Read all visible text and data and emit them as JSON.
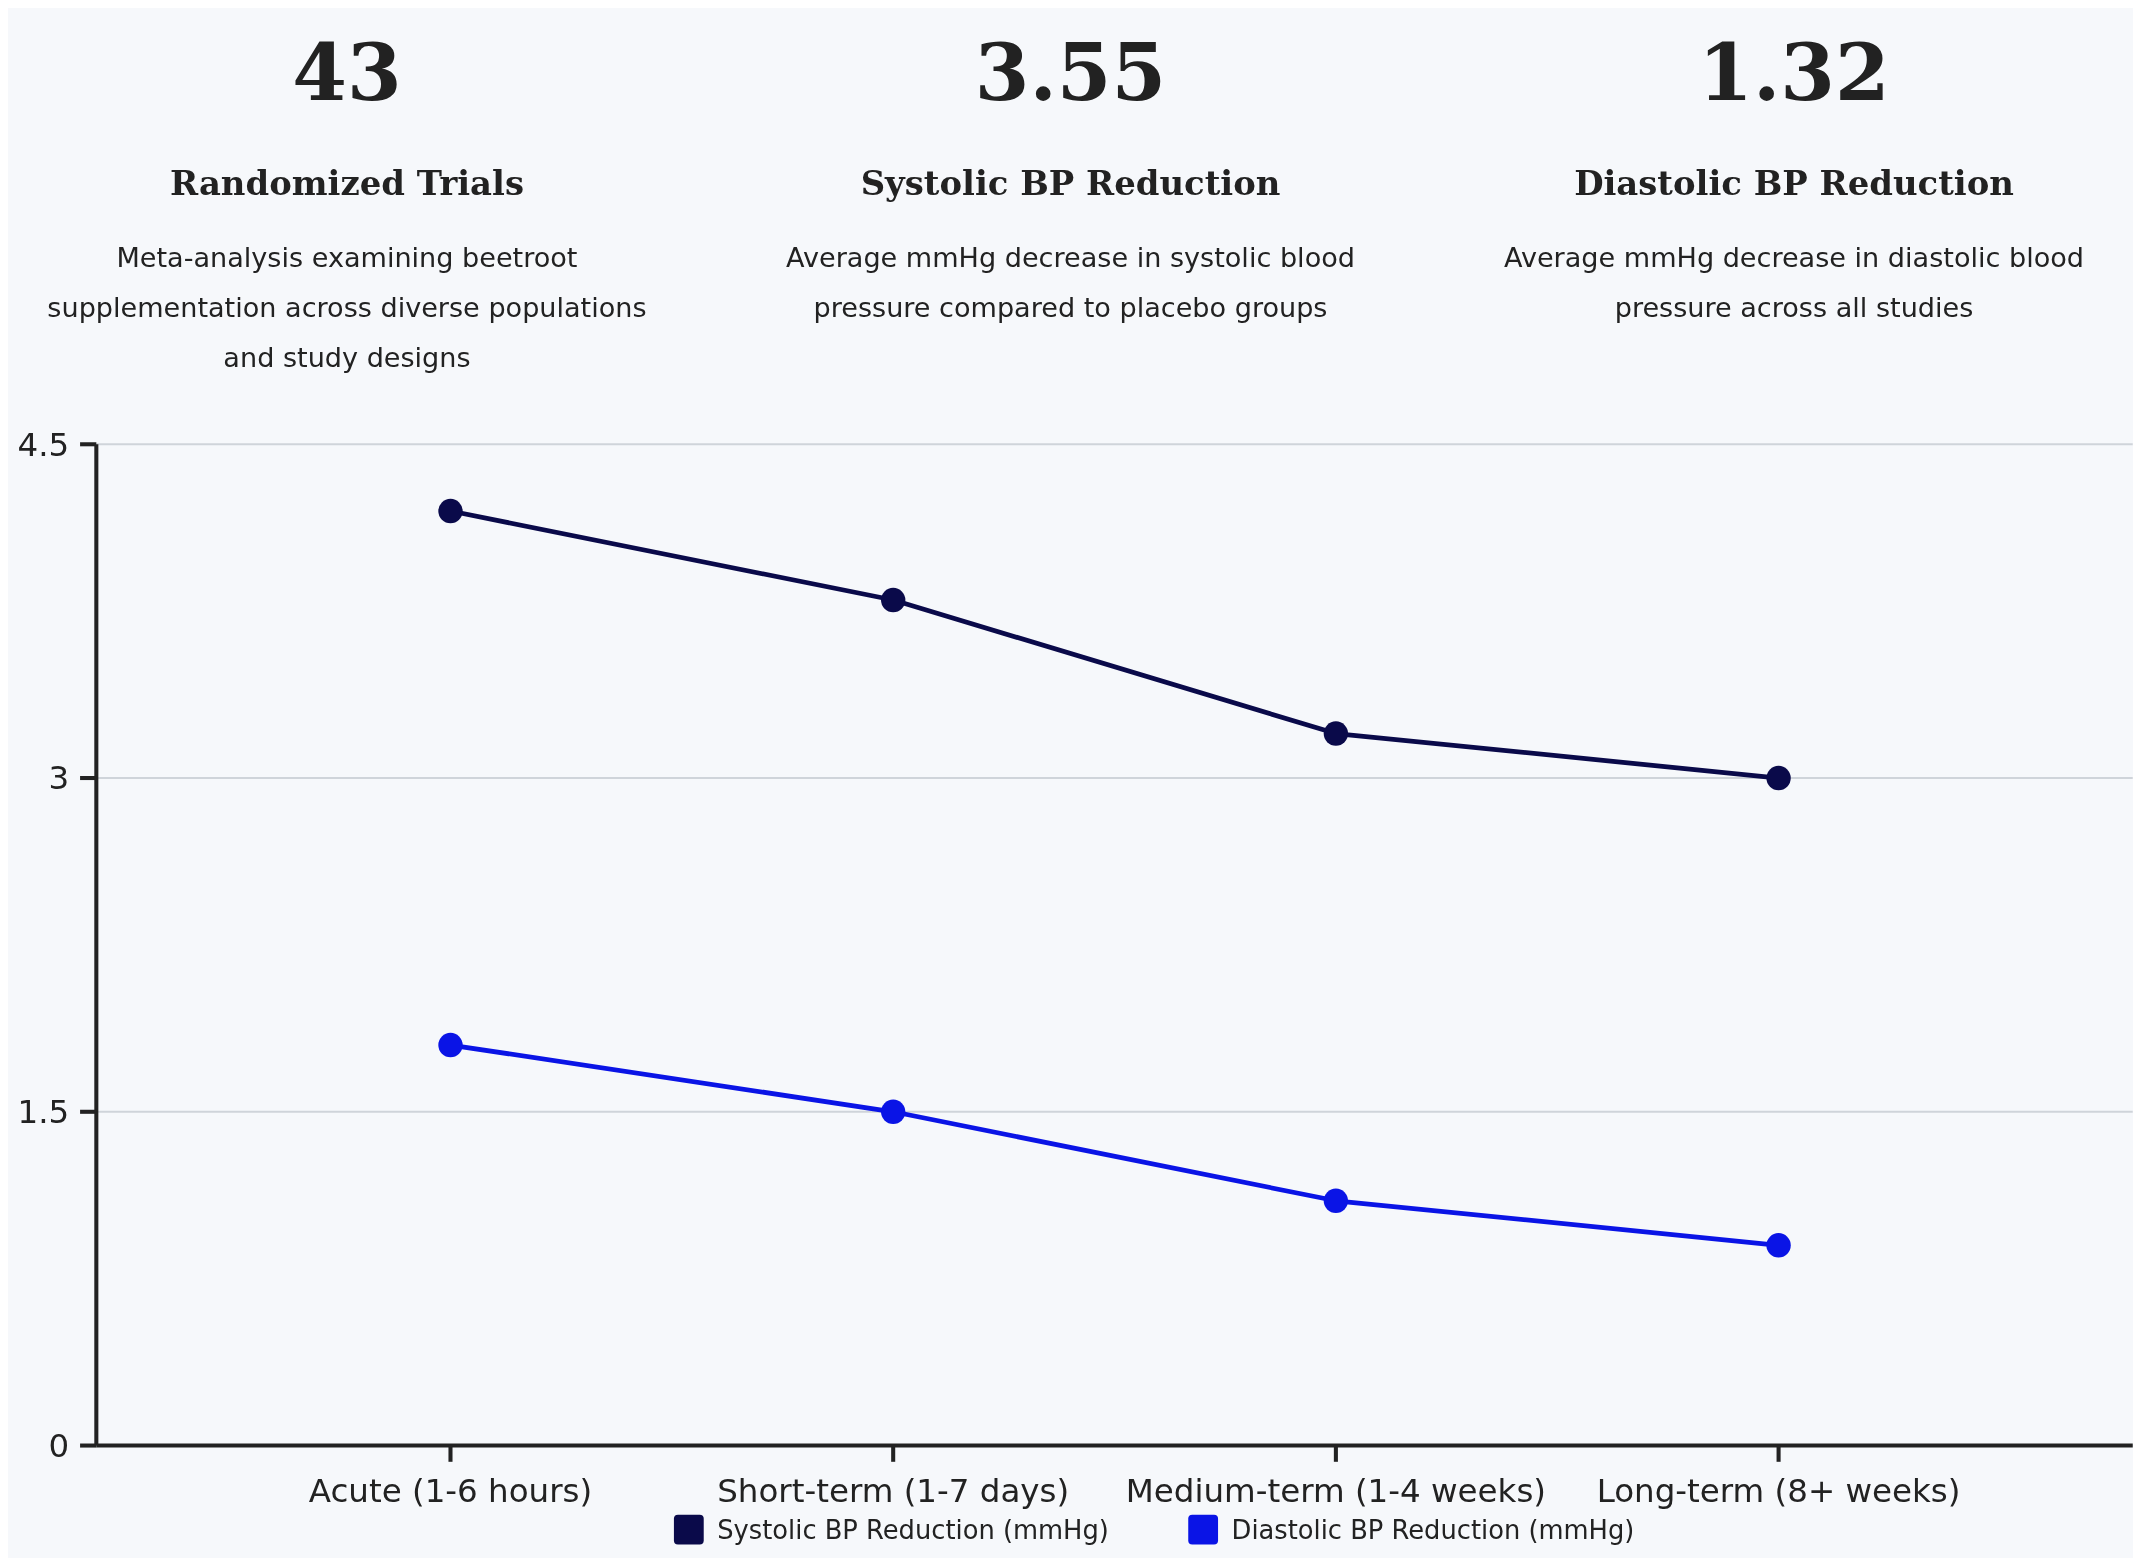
{
  "chart_data": [
    {
      "type": "other",
      "title": "Randomized Trials",
      "subtitle": "Meta-analysis examining beetroot supplementation across diverse populations and study designs",
      "annotations": [
        "43"
      ]
    },
    {
      "type": "other",
      "title": "Systolic BP Reduction",
      "subtitle": "Average mmHg decrease in systolic blood pressure compared to placebo groups",
      "annotations": [
        "3.55"
      ]
    },
    {
      "type": "other",
      "title": "Diastolic BP Reduction",
      "subtitle": "Average mmHg decrease in diastolic blood pressure across all studies",
      "annotations": [
        "1.32"
      ]
    },
    {
      "type": "line",
      "categories": [
        "Acute (1-6 hours)",
        "Short-term (1-7 days)",
        "Medium-term (1-4 weeks)",
        "Long-term (8+ weeks)"
      ],
      "series": [
        {
          "name": "Systolic BP Reduction (mmHg)",
          "color": "#0a0a4a",
          "values": [
            4.2,
            3.8,
            3.2,
            3.0
          ]
        },
        {
          "name": "Diastolic BP Reduction (mmHg)",
          "color": "#0a14e6",
          "values": [
            1.8,
            1.5,
            1.1,
            0.9
          ]
        }
      ],
      "ylim": [
        0,
        4.5
      ],
      "yticks": [
        0,
        1.5,
        3,
        4.5
      ],
      "grid": "y",
      "legend": "bottom",
      "marker": "circle",
      "line_style": "solid"
    }
  ]
}
